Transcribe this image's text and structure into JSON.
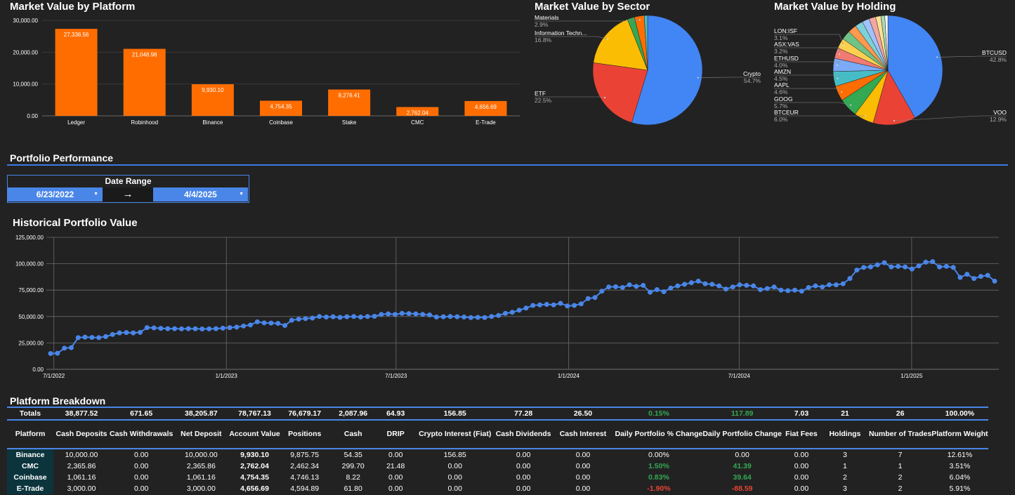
{
  "platform_chart": {
    "title": "Market Value by Platform",
    "chart_data": {
      "type": "bar",
      "categories": [
        "Ledger",
        "Robinhood",
        "Binance",
        "Coinbase",
        "Stake",
        "CMC",
        "E-Trade"
      ],
      "values": [
        27338.56,
        21048.98,
        9930.1,
        4754.35,
        8276.41,
        2762.04,
        4656.69
      ],
      "value_labels": [
        "27,338.56",
        "21,048.98",
        "9,930.10",
        "4,754.35",
        "8,276.41",
        "2,762.04",
        "4,656.69"
      ],
      "yticks": [
        "0.00",
        "10,000.00",
        "20,000.00",
        "30,000.00"
      ],
      "ylim": [
        0,
        30000
      ],
      "color": "#ff6d01"
    }
  },
  "sector_chart": {
    "title": "Market Value by Sector",
    "chart_data": {
      "type": "pie",
      "slices": [
        {
          "label": "Crypto",
          "pct": "54.7%",
          "value": 54.7,
          "color": "#4285f4"
        },
        {
          "label": "ETF",
          "pct": "22.5%",
          "value": 22.5,
          "color": "#ea4335"
        },
        {
          "label": "Information Techn...",
          "pct": "16.8%",
          "value": 16.8,
          "color": "#fbbc04"
        },
        {
          "label": "",
          "pct": "",
          "value": 2.1,
          "color": "#34a853"
        },
        {
          "label": "Materials",
          "pct": "2.9%",
          "value": 2.9,
          "color": "#ff6d01"
        },
        {
          "label": "",
          "pct": "",
          "value": 1.0,
          "color": "#46bdc6"
        }
      ]
    }
  },
  "holding_chart": {
    "title": "Market Value by Holding",
    "chart_data": {
      "type": "pie",
      "slices": [
        {
          "label": "BTCUSD",
          "pct": "42.8%",
          "value": 42.8,
          "color": "#4285f4"
        },
        {
          "label": "VOO",
          "pct": "12.9%",
          "value": 12.9,
          "color": "#ea4335"
        },
        {
          "label": "BTCEUR",
          "pct": "6.0%",
          "value": 6.0,
          "color": "#fbbc04"
        },
        {
          "label": "GOOG",
          "pct": "5.7%",
          "value": 5.7,
          "color": "#34a853"
        },
        {
          "label": "AAPL",
          "pct": "4.6%",
          "value": 4.6,
          "color": "#ff6d01"
        },
        {
          "label": "AMZN",
          "pct": "4.5%",
          "value": 4.5,
          "color": "#46bdc6"
        },
        {
          "label": "ETHUSD",
          "pct": "4.0%",
          "value": 4.0,
          "color": "#7baaf7"
        },
        {
          "label": "ASX:VAS",
          "pct": "3.2%",
          "value": 3.2,
          "color": "#f07b72"
        },
        {
          "label": "LON:ISF",
          "pct": "3.1%",
          "value": 3.1,
          "color": "#fcd04f"
        },
        {
          "label": "",
          "pct": "",
          "value": 2.8,
          "color": "#71c287"
        },
        {
          "label": "",
          "pct": "",
          "value": 2.6,
          "color": "#ff994d"
        },
        {
          "label": "",
          "pct": "",
          "value": 2.4,
          "color": "#7ed1d7"
        },
        {
          "label": "",
          "pct": "",
          "value": 2.2,
          "color": "#a0c3ff"
        },
        {
          "label": "",
          "pct": "",
          "value": 2.0,
          "color": "#f4a7a1"
        },
        {
          "label": "",
          "pct": "",
          "value": 1.6,
          "color": "#fde293"
        },
        {
          "label": "",
          "pct": "",
          "value": 1.2,
          "color": "#a8dab5"
        },
        {
          "label": "",
          "pct": "",
          "value": 0.9,
          "color": "#ffffff"
        }
      ]
    }
  },
  "perf": {
    "heading": "Portfolio Performance",
    "date_range_title": "Date Range",
    "start_date": "6/23/2022",
    "end_date": "4/4/2025",
    "arrow": "→"
  },
  "hist_chart": {
    "title": "Historical Portfolio Value",
    "chart_data": {
      "type": "line",
      "x_start": "2022-06-23",
      "x_end": "2025-04-04",
      "xticks": [
        {
          "label": "7/1/2022",
          "date": "2022-07-01"
        },
        {
          "label": "1/1/2023",
          "date": "2023-01-01"
        },
        {
          "label": "7/1/2023",
          "date": "2023-07-01"
        },
        {
          "label": "1/1/2024",
          "date": "2024-01-01"
        },
        {
          "label": "7/1/2024",
          "date": "2024-07-01"
        },
        {
          "label": "1/1/2025",
          "date": "2025-01-01"
        }
      ],
      "yticks": [
        "0.00",
        "25,000.00",
        "50,000.00",
        "75,000.00",
        "100,000.00",
        "125,000.00"
      ],
      "ylim": [
        0,
        125000
      ],
      "values": [
        15000,
        15200,
        20000,
        20500,
        30000,
        30500,
        30200,
        30000,
        31000,
        33000,
        34500,
        34800,
        34500,
        35000,
        39500,
        39200,
        38800,
        38500,
        38500,
        38300,
        38500,
        38400,
        38200,
        38300,
        38500,
        39000,
        39500,
        40000,
        41000,
        42000,
        45000,
        44000,
        43800,
        43500,
        41500,
        46500,
        47500,
        48000,
        48500,
        50000,
        49500,
        49800,
        49200,
        49800,
        50000,
        49500,
        50000,
        50200,
        52000,
        52500,
        52000,
        53000,
        52800,
        52500,
        52000,
        51500,
        49500,
        49800,
        50000,
        49800,
        49500,
        49000,
        49200,
        49000,
        50000,
        51000,
        53000,
        54000,
        56000,
        58000,
        60500,
        61000,
        61500,
        61000,
        62500,
        60000,
        60500,
        62000,
        67000,
        68000,
        74000,
        78000,
        78200,
        77500,
        80000,
        78500,
        79500,
        73000,
        75500,
        73500,
        77000,
        79000,
        80500,
        82000,
        83500,
        81000,
        80500,
        79000,
        76000,
        78000,
        80000,
        79500,
        79000,
        75500,
        76500,
        78000,
        75000,
        74500,
        75000,
        74000,
        77500,
        79000,
        78000,
        80000,
        80000,
        81000,
        86000,
        94000,
        96500,
        97000,
        99000,
        101000,
        97000,
        97500,
        97000,
        95000,
        98000,
        101500,
        102000,
        97000,
        97500,
        96500,
        87000,
        90000,
        86000,
        88000,
        89000,
        83500
      ]
    }
  },
  "breakdown": {
    "heading": "Platform Breakdown",
    "totals": [
      "Totals",
      "38,877.52",
      "671.65",
      "38,205.87",
      "78,767.13",
      "76,679.17",
      "2,087.96",
      "64.93",
      "156.85",
      "77.28",
      "26.50",
      "0.15%",
      "117.89",
      "7.03",
      "21",
      "26",
      "100.00%"
    ],
    "headers": [
      "Platform",
      "Cash Deposits",
      "Cash Withdrawals",
      "Net Deposit",
      "Account Value",
      "Positions",
      "Cash",
      "DRIP",
      "Crypto Interest (Fiat)",
      "Cash Dividends",
      "Cash Interest",
      "Daily Portfolio % Change",
      "Daily Portfolio Change",
      "Fiat Fees",
      "Holdings",
      "Number of Trades",
      "Platform Weight"
    ],
    "rows": [
      [
        "Binance",
        "10,000.00",
        "0.00",
        "10,000.00",
        "9,930.10",
        "9,875.75",
        "54.35",
        "0.00",
        "156.85",
        "0.00",
        "0.00",
        "0.00%",
        "0.00",
        "0.00",
        "3",
        "7",
        "12.61%"
      ],
      [
        "CMC",
        "2,365.86",
        "0.00",
        "2,365.86",
        "2,762.04",
        "2,462.34",
        "299.70",
        "21.48",
        "0.00",
        "0.00",
        "0.00",
        "1.50%",
        "41.39",
        "0.00",
        "1",
        "1",
        "3.51%"
      ],
      [
        "Coinbase",
        "1,061.16",
        "0.00",
        "1,061.16",
        "4,754.35",
        "4,746.13",
        "8.22",
        "0.00",
        "0.00",
        "0.00",
        "0.00",
        "0.83%",
        "39.64",
        "0.00",
        "2",
        "2",
        "6.04%"
      ],
      [
        "E-Trade",
        "3,000.00",
        "0.00",
        "3,000.00",
        "4,656.69",
        "4,594.89",
        "61.80",
        "0.00",
        "0.00",
        "0.00",
        "0.00",
        "-1.90%",
        "-88.59",
        "0.00",
        "3",
        "2",
        "5.91%"
      ]
    ]
  }
}
